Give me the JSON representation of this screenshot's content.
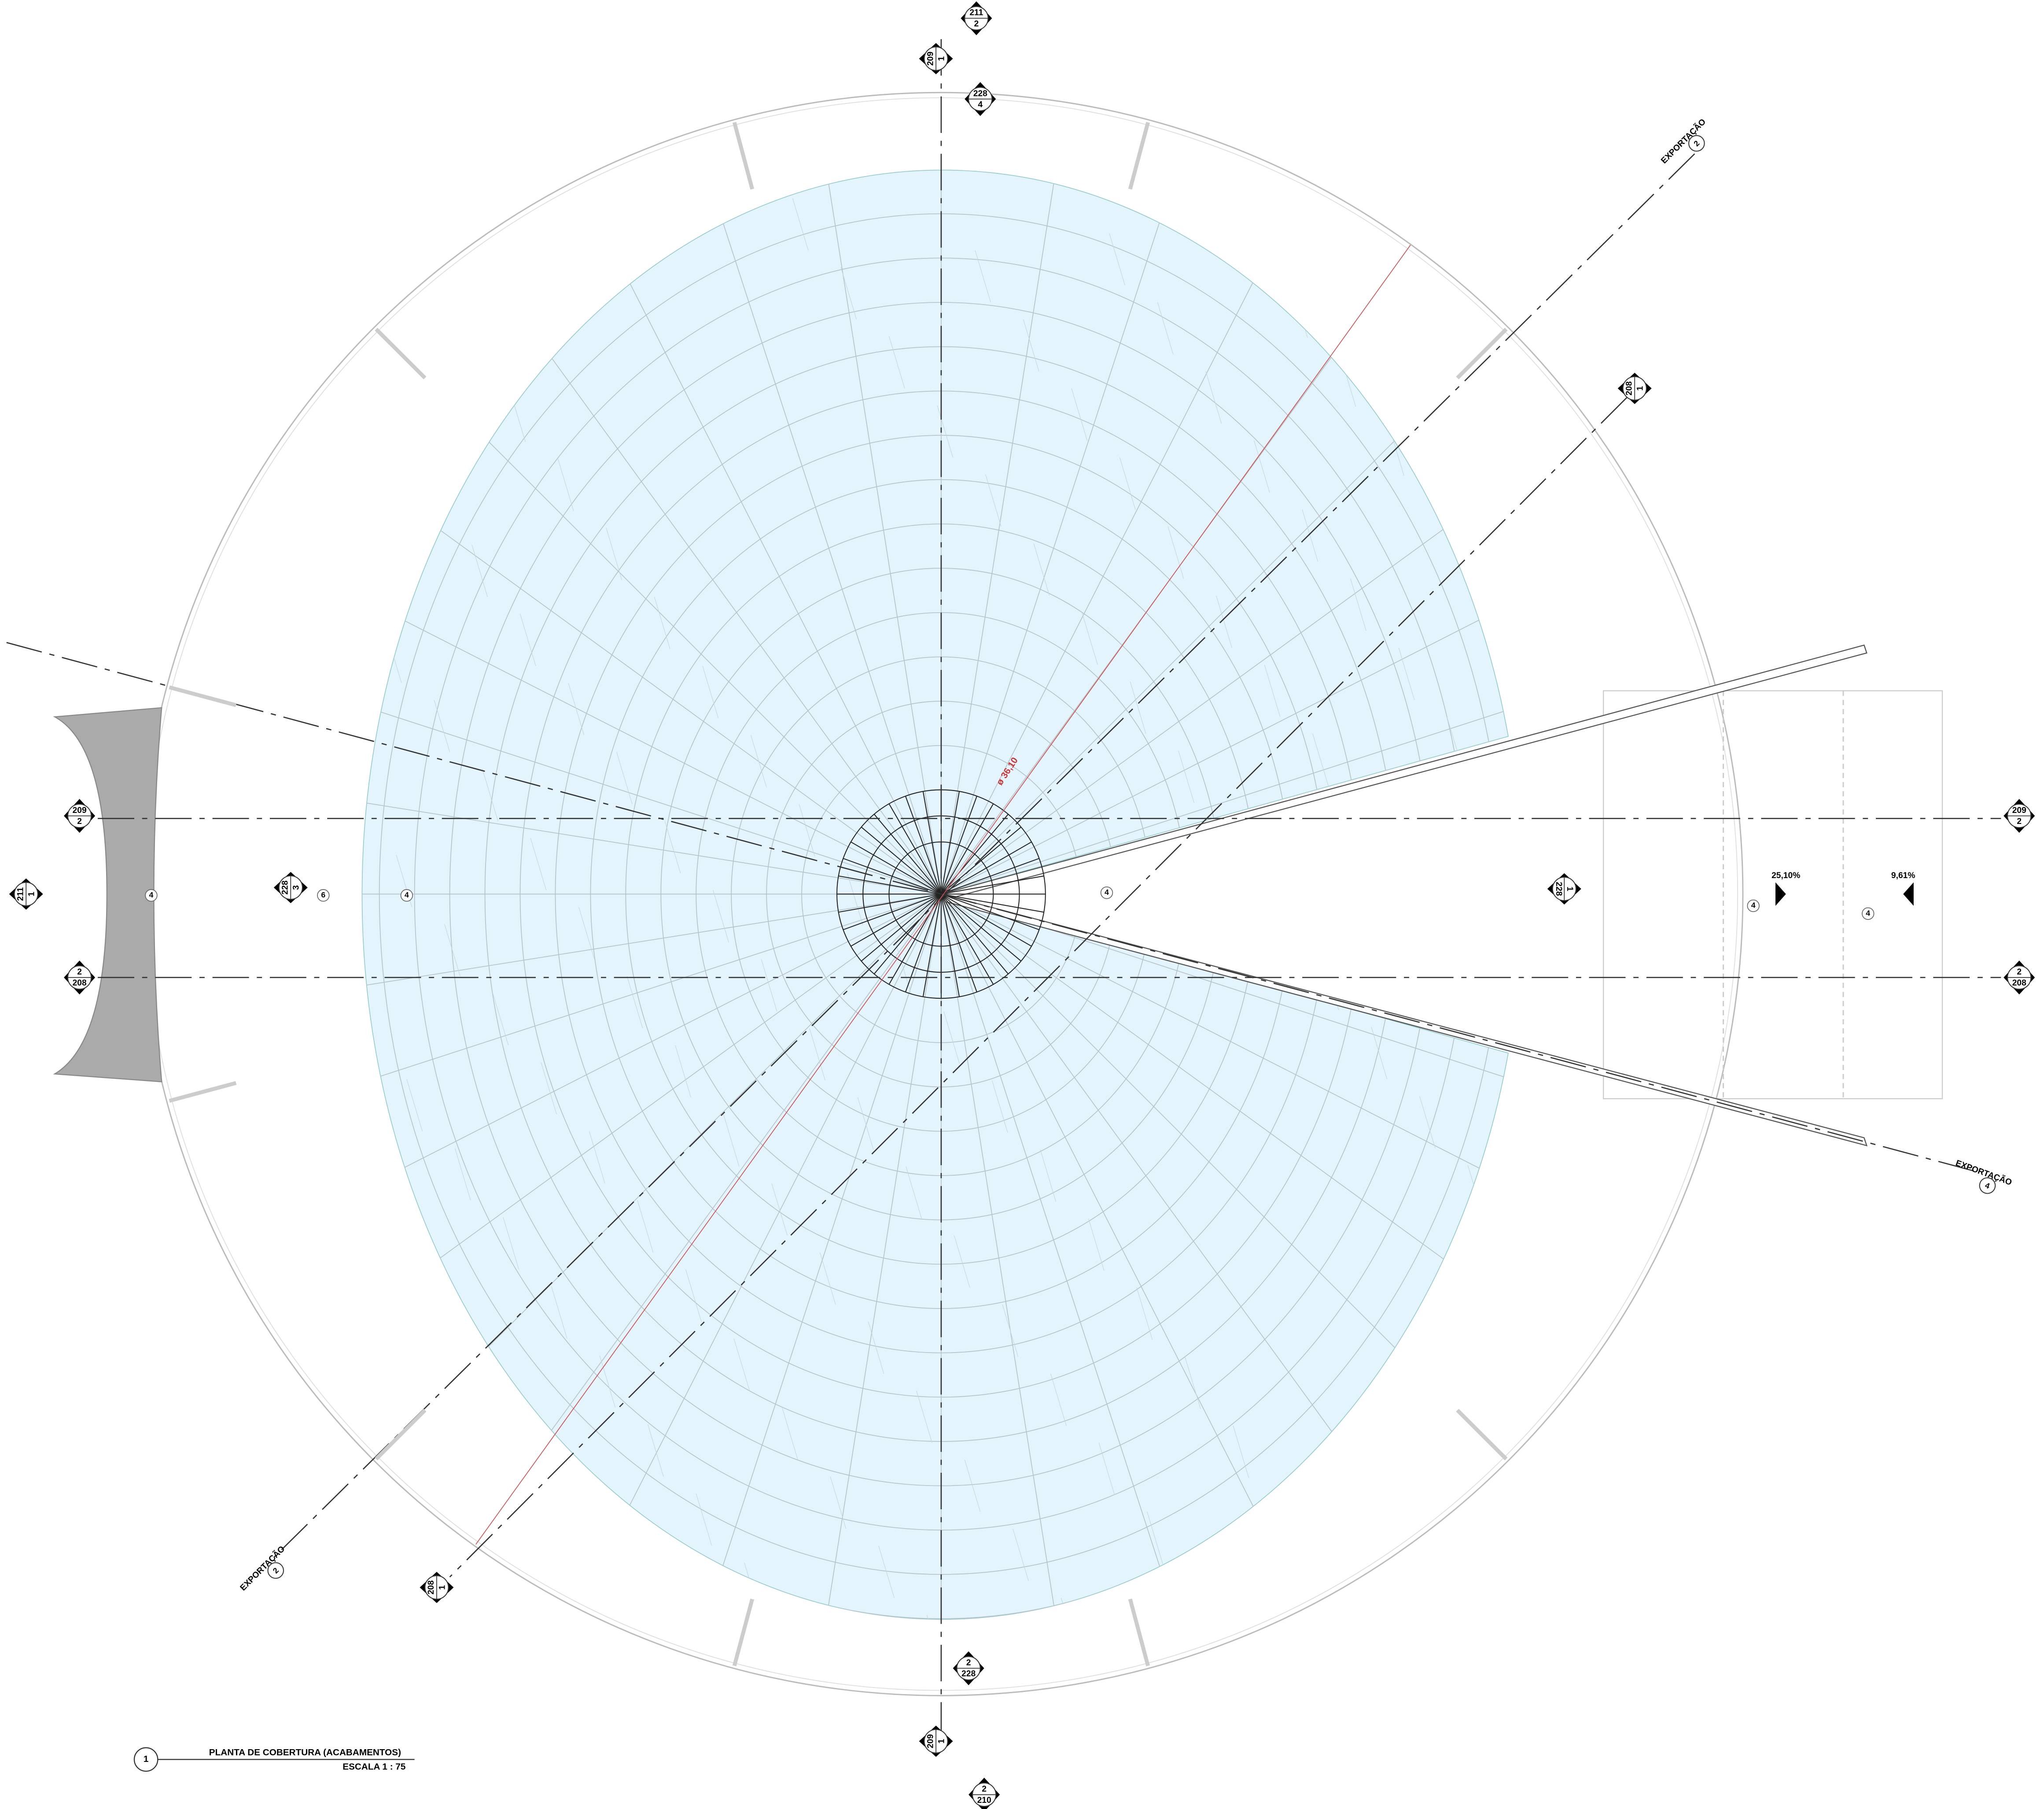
{
  "drawing": {
    "view_number": "1",
    "title": "PLANTA DE COBERTURA (ACABAMENTOS)",
    "scale": "ESCALA 1 : 75",
    "dimension": "ø 36,10",
    "markers": [
      {
        "top": "211",
        "bottom": "2"
      },
      {
        "top": "209",
        "bottom": "1"
      },
      {
        "top": "228",
        "bottom": "4"
      },
      {
        "top": "EXPORTAÇÃO",
        "bottom": "2"
      },
      {
        "top": "208",
        "bottom": "1"
      },
      {
        "top": "209",
        "bottom": "2"
      },
      {
        "top": "209",
        "bottom": "2"
      },
      {
        "top": "2",
        "bottom": "208"
      },
      {
        "top": "2",
        "bottom": "208"
      },
      {
        "top": "211",
        "bottom": "1"
      },
      {
        "top": "228",
        "bottom": "3"
      },
      {
        "top": "1",
        "bottom": "228"
      },
      {
        "top": "2",
        "bottom": "228"
      },
      {
        "top": "209",
        "bottom": "1"
      },
      {
        "top": "2",
        "bottom": "210"
      },
      {
        "top": "EXPORTAÇÃO",
        "bottom": "2"
      },
      {
        "top": "208",
        "bottom": "1"
      },
      {
        "top": "EXPORTAÇÃO",
        "bottom": "4"
      }
    ],
    "tags": [
      "4",
      "6",
      "4",
      "4",
      "4",
      "4"
    ],
    "slopes": [
      "25,10%",
      "9,61%"
    ]
  }
}
